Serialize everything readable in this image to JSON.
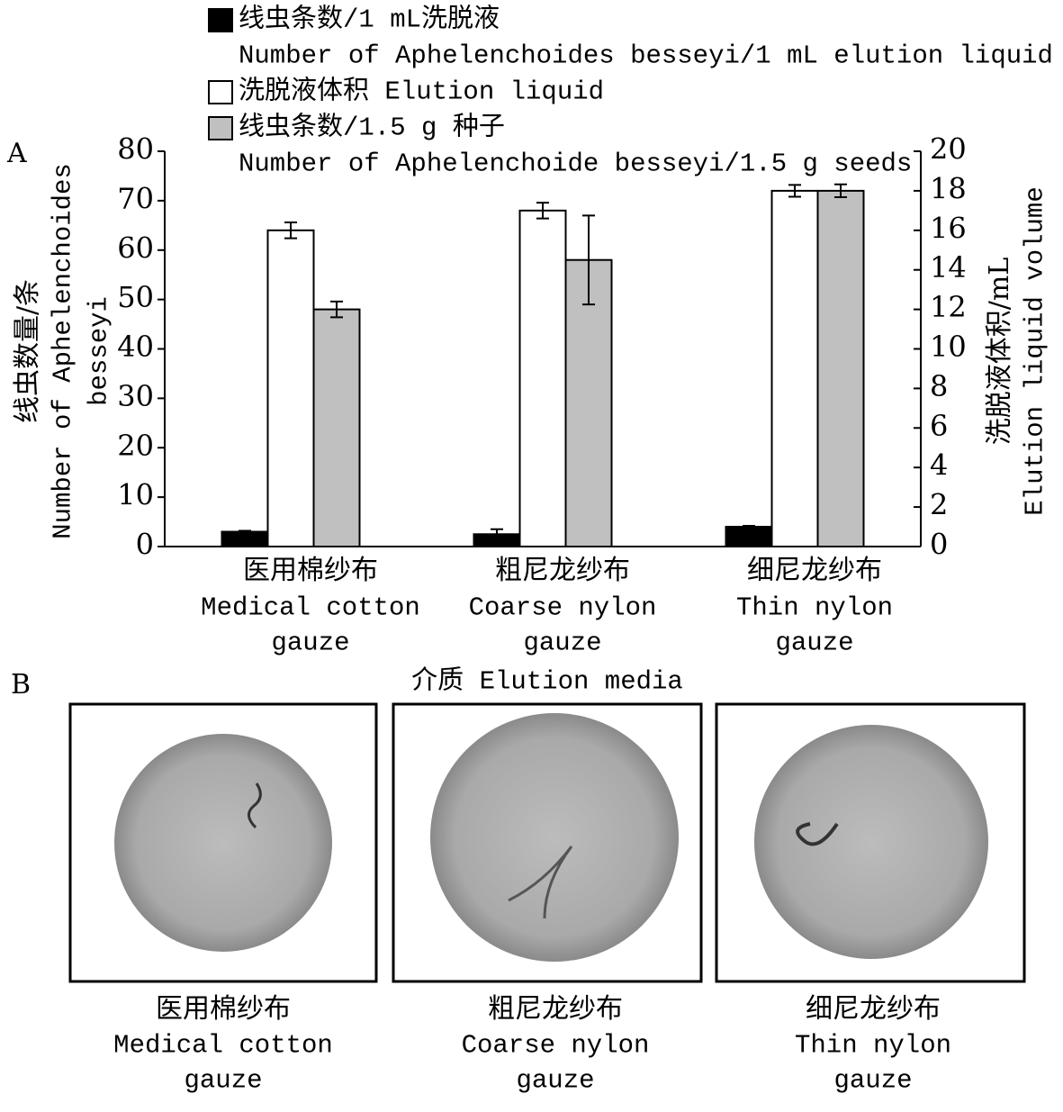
{
  "chart_data": {
    "type": "bar",
    "panel_label": "A",
    "categories": [
      "医用棉纱布",
      "粗尼龙纱布",
      "细尼龙纱布"
    ],
    "categories_en": [
      "Medical cotton gauze",
      "Coarse nylon gauze",
      "Thin nylon gauze"
    ],
    "x_label": "介质 Elution media",
    "y_label": "线虫数量/条",
    "y_label_en": "Number of Aphelenchoides besseyi",
    "y2_label": "洗脱液体积/mL",
    "y2_label_en": "Elution liquid volume",
    "ylim": [
      0,
      80
    ],
    "yticks": [
      0,
      10,
      20,
      30,
      40,
      50,
      60,
      70,
      80
    ],
    "y2lim": [
      0,
      20
    ],
    "y2ticks": [
      0,
      2,
      4,
      6,
      8,
      10,
      12,
      14,
      16,
      18,
      20
    ],
    "series": [
      {
        "name": "线虫条数/1 mL洗脱液",
        "name_en": "Number of Aphelenchoides besseyi/1 mL elution liquid",
        "color": "#000000",
        "values": [
          3,
          2.5,
          4
        ],
        "errors": [
          0.2,
          1,
          0.2
        ]
      },
      {
        "name": "洗脱液体积 Elution liquid",
        "color": "#ffffff",
        "axis": "y2",
        "values": [
          16,
          17,
          18
        ],
        "errors": [
          0.4,
          0.4,
          0.3
        ]
      },
      {
        "name": "线虫条数/1.5 g 种子",
        "name_en": "Number of Aphelenchoide besseyi/1.5 g seeds",
        "color": "#c0c0c0",
        "values": [
          48,
          58,
          72
        ],
        "errors": [
          1.6,
          9,
          1.3
        ]
      }
    ]
  },
  "panel_b": {
    "label": "B",
    "images": [
      {
        "label_zh": "医用棉纱布",
        "label_en": "Medical cotton gauze"
      },
      {
        "label_zh": "粗尼龙纱布",
        "label_en": "Coarse nylon gauze"
      },
      {
        "label_zh": "细尼龙纱布",
        "label_en": "Thin nylon gauze"
      }
    ]
  }
}
